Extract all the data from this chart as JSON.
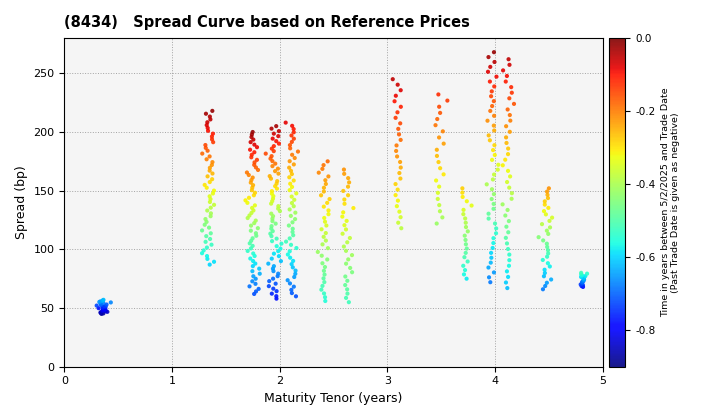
{
  "title": "(8434)   Spread Curve based on Reference Prices",
  "xlabel": "Maturity Tenor (years)",
  "ylabel": "Spread (bp)",
  "colorbar_label": "Time in years between 5/2/2025 and Trade Date\n(Past Trade Date is given as negative)",
  "xlim": [
    0,
    5
  ],
  "ylim": [
    0,
    280
  ],
  "xticks": [
    0,
    1,
    2,
    3,
    4,
    5
  ],
  "yticks": [
    0,
    50,
    100,
    150,
    200,
    250
  ],
  "cmap": "jet",
  "vmin": -0.9,
  "vmax": 0.0,
  "background": "#f5f5f5",
  "clusters": [
    {
      "x_center": 0.35,
      "x_spread": 0.05,
      "y_base": 45,
      "y_top": 57,
      "time_base": -0.88,
      "time_top": -0.62,
      "n_points": 28
    },
    {
      "x_center": 1.35,
      "x_spread": 0.06,
      "y_base": 87,
      "y_top": 218,
      "time_base": -0.6,
      "time_top": -0.02,
      "n_points": 55
    },
    {
      "x_center": 1.75,
      "x_spread": 0.06,
      "y_base": 62,
      "y_top": 200,
      "time_base": -0.72,
      "time_top": -0.02,
      "n_points": 65
    },
    {
      "x_center": 1.95,
      "x_spread": 0.06,
      "y_base": 58,
      "y_top": 205,
      "time_base": -0.78,
      "time_top": -0.03,
      "n_points": 70
    },
    {
      "x_center": 2.12,
      "x_spread": 0.05,
      "y_base": 60,
      "y_top": 208,
      "time_base": -0.72,
      "time_top": -0.08,
      "n_points": 55
    },
    {
      "x_center": 2.42,
      "x_spread": 0.05,
      "y_base": 56,
      "y_top": 175,
      "time_base": -0.55,
      "time_top": -0.18,
      "n_points": 38
    },
    {
      "x_center": 2.62,
      "x_spread": 0.05,
      "y_base": 55,
      "y_top": 168,
      "time_base": -0.52,
      "time_top": -0.22,
      "n_points": 32
    },
    {
      "x_center": 3.1,
      "x_spread": 0.04,
      "y_base": 118,
      "y_top": 245,
      "time_base": -0.38,
      "time_top": -0.05,
      "n_points": 28
    },
    {
      "x_center": 3.48,
      "x_spread": 0.04,
      "y_base": 122,
      "y_top": 232,
      "time_base": -0.42,
      "time_top": -0.12,
      "n_points": 22
    },
    {
      "x_center": 3.72,
      "x_spread": 0.04,
      "y_base": 75,
      "y_top": 152,
      "time_base": -0.58,
      "time_top": -0.28,
      "n_points": 22
    },
    {
      "x_center": 3.98,
      "x_spread": 0.05,
      "y_base": 72,
      "y_top": 268,
      "time_base": -0.68,
      "time_top": -0.02,
      "n_points": 48
    },
    {
      "x_center": 4.12,
      "x_spread": 0.05,
      "y_base": 67,
      "y_top": 262,
      "time_base": -0.62,
      "time_top": -0.05,
      "n_points": 42
    },
    {
      "x_center": 4.48,
      "x_spread": 0.05,
      "y_base": 66,
      "y_top": 152,
      "time_base": -0.68,
      "time_top": -0.22,
      "n_points": 32
    },
    {
      "x_center": 4.82,
      "x_spread": 0.04,
      "y_base": 68,
      "y_top": 80,
      "time_base": -0.78,
      "time_top": -0.52,
      "n_points": 18
    }
  ]
}
